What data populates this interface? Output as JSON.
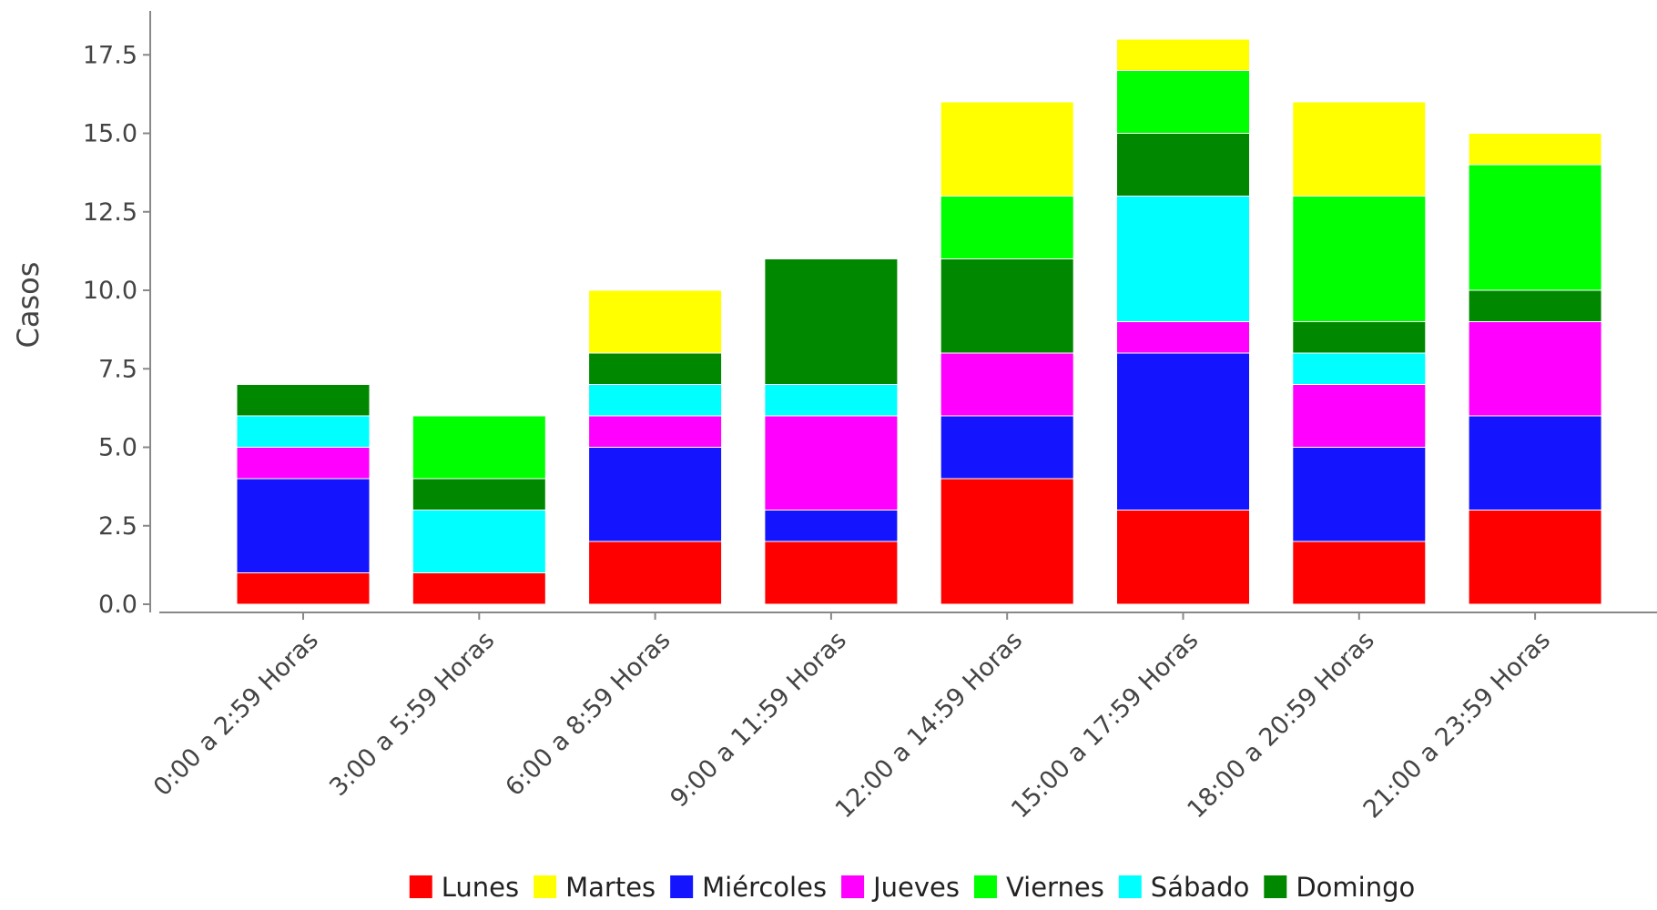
{
  "chart_data": {
    "type": "bar",
    "stacked": true,
    "title": "",
    "xlabel": "",
    "ylabel": "Casos",
    "ylim": [
      0,
      18.5
    ],
    "yticks": [
      "0.0",
      "2.5",
      "5.0",
      "7.5",
      "10.0",
      "12.5",
      "15.0",
      "17.5"
    ],
    "grid": false,
    "legend_position": "bottom",
    "categories": [
      "0:00 a 2:59 Horas",
      "3:00 a 5:59 Horas",
      "6:00 a 8:59 Horas",
      "9:00 a 11:59 Horas",
      "12:00 a 14:59 Horas",
      "15:00 a 17:59 Horas",
      "18:00 a 20:59 Horas",
      "21:00 a 23:59 Horas"
    ],
    "series": [
      {
        "name": "Lunes",
        "color": "#ff0000",
        "values": [
          1,
          1,
          2,
          2,
          4,
          3,
          2,
          3
        ]
      },
      {
        "name": "Miércoles",
        "color": "#1414ff",
        "values": [
          3,
          0,
          3,
          1,
          2,
          5,
          3,
          3
        ]
      },
      {
        "name": "Jueves",
        "color": "#ff00ff",
        "values": [
          1,
          0,
          1,
          3,
          2,
          1,
          2,
          3
        ]
      },
      {
        "name": "Sábado",
        "color": "#00ffff",
        "values": [
          1,
          2,
          1,
          1,
          0,
          4,
          1,
          0
        ]
      },
      {
        "name": "Domingo",
        "color": "#008800",
        "values": [
          1,
          1,
          1,
          4,
          3,
          2,
          1,
          1
        ]
      },
      {
        "name": "Viernes",
        "color": "#00ff00",
        "values": [
          0,
          2,
          0,
          0,
          2,
          2,
          4,
          4
        ]
      },
      {
        "name": "Martes",
        "color": "#ffff00",
        "values": [
          0,
          0,
          2,
          0,
          3,
          1,
          3,
          1
        ]
      }
    ],
    "legend_order": [
      "Lunes",
      "Martes",
      "Miércoles",
      "Jueves",
      "Viernes",
      "Sábado",
      "Domingo"
    ]
  }
}
